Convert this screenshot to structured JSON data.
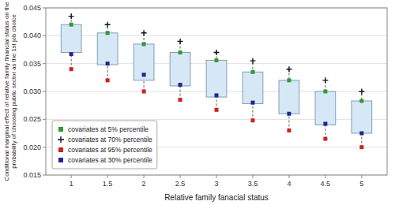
{
  "chart_data": {
    "type": "box",
    "xlabel": "Relative family fanacial status",
    "ylabel": "Conditional marginal effect of relative family financial status on the\nprobability of choosing public sector as the 1st job choice",
    "x": [
      1,
      1.5,
      2,
      2.5,
      3,
      3.5,
      4,
      4.5,
      5
    ],
    "xlim": [
      0.65,
      5.35
    ],
    "xticks": [
      1,
      1.5,
      2,
      2.5,
      3,
      3.5,
      4,
      4.5,
      5
    ],
    "ylim": [
      0.015,
      0.045
    ],
    "yticks": [
      0.015,
      {
        "value": 0.02,
        "label": "0.020"
      },
      0.025,
      {
        "value": 0.03,
        "label": "0.030"
      },
      0.035,
      {
        "value": 0.04,
        "label": "0.040"
      },
      0.045
    ],
    "grid": true,
    "legend": "lower left",
    "boxes": {
      "lower": [
        0.037,
        0.0348,
        0.032,
        0.031,
        0.029,
        0.0278,
        0.026,
        0.024,
        0.0225
      ],
      "upper": [
        0.042,
        0.0405,
        0.0385,
        0.037,
        0.0356,
        0.0335,
        0.032,
        0.03,
        0.0283
      ],
      "color": "#d6e8f5"
    },
    "series": [
      {
        "name": "covariates at 5% percentile",
        "color": "#339933",
        "marker": "square",
        "values": [
          0.042,
          0.0405,
          0.0385,
          0.037,
          0.0356,
          0.0335,
          0.032,
          0.03,
          0.0283
        ]
      },
      {
        "name": "covariates at 70% percentile",
        "color": "#111111",
        "marker": "plus",
        "values": [
          0.0435,
          0.042,
          0.0405,
          0.039,
          0.037,
          0.0355,
          0.034,
          0.032,
          0.03
        ]
      },
      {
        "name": "covariates at 95% percentile",
        "color": "#cc2222",
        "marker": "square",
        "values": [
          0.034,
          0.032,
          0.03,
          0.0285,
          0.0267,
          0.0248,
          0.023,
          0.0215,
          0.02
        ]
      },
      {
        "name": "covariates at 30% percentile",
        "color": "#222299",
        "marker": "square",
        "values": [
          0.0367,
          0.035,
          0.033,
          0.0312,
          0.0293,
          0.028,
          0.026,
          0.0242,
          0.0225
        ]
      }
    ]
  }
}
